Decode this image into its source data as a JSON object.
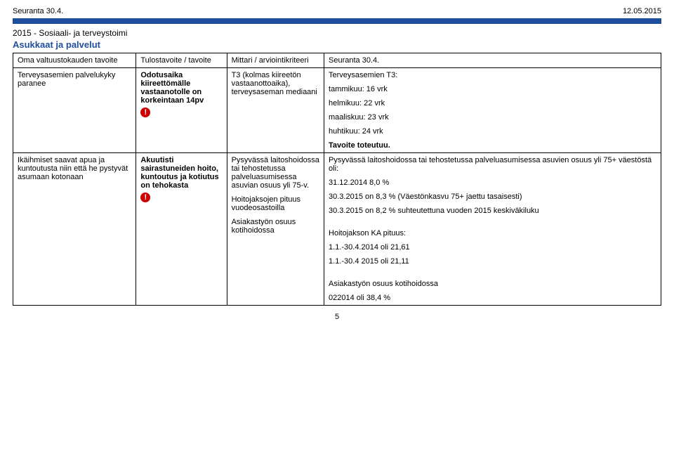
{
  "header": {
    "left": "Seuranta 30.4.",
    "right": "12.05.2015"
  },
  "section": {
    "title": "2015 - Sosiaali- ja terveystoimi",
    "subtitle": "Asukkaat ja palvelut"
  },
  "columns": {
    "c1": "Oma valtuustokauden tavoite",
    "c2": "Tulostavoite / tavoite",
    "c3": "Mittari / arviointikriteeri",
    "c4": "Seuranta 30.4."
  },
  "icons": {
    "bang": "!"
  },
  "row1": {
    "c1": "Terveysasemien palvelukyky paranee",
    "c2_bold": "Odotusaika kiireettömälle vastaanotolle on korkeintaan 14pv",
    "c3": "T3 (kolmas kiireetön vastaanottoaika), terveysaseman mediaani",
    "c4_lines": {
      "l1": "Terveysasemien T3:",
      "l2": "tammikuu: 16 vrk",
      "l3": "helmikuu: 22 vrk",
      "l4": "maaliskuu: 23 vrk",
      "l5": "huhtikuu: 24 vrk",
      "l6_bold": "Tavoite toteutuu."
    }
  },
  "row2": {
    "c1": "Ikäihmiset saavat apua ja kuntoutusta niin että he pystyvät asumaan kotonaan",
    "c2_bold": "Akuutisti sairastuneiden hoito, kuntoutus ja kotiutus on tehokasta",
    "c3_p1": "Pysyvässä laitoshoidossa tai tehostetussa palveluasumisessa asuvian osuus yli 75-v.",
    "c3_p2": "Hoitojaksojen pituus vuodeosastoilla",
    "c3_p3": "Asiakastyön osuus kotihoidossa",
    "c4_p1": "Pysyvässä laitoshoidossa tai tehostetussa palveluasumisessa asuvien osuus yli 75+ väestöstä oli:",
    "c4_p2": "31.12.2014 8,0 %",
    "c4_p3": "30.3.2015 on 8,3 % (Väestönkasvu 75+ jaettu tasaisesti)",
    "c4_p4": "30.3.2015 on 8,2 % suhteutettuna vuoden 2015 keskiväkiluku",
    "c4_p5": "Hoitojakson KA pituus:",
    "c4_p6": "1.1.-30.4.2014 oli 21,61",
    "c4_p7": "1.1.-30.4 2015 oli 21,11",
    "c4_p8": "Asiakastyön osuus kotihoidossa",
    "c4_p9": "022014 oli 38,4 %"
  },
  "page_number": "5"
}
